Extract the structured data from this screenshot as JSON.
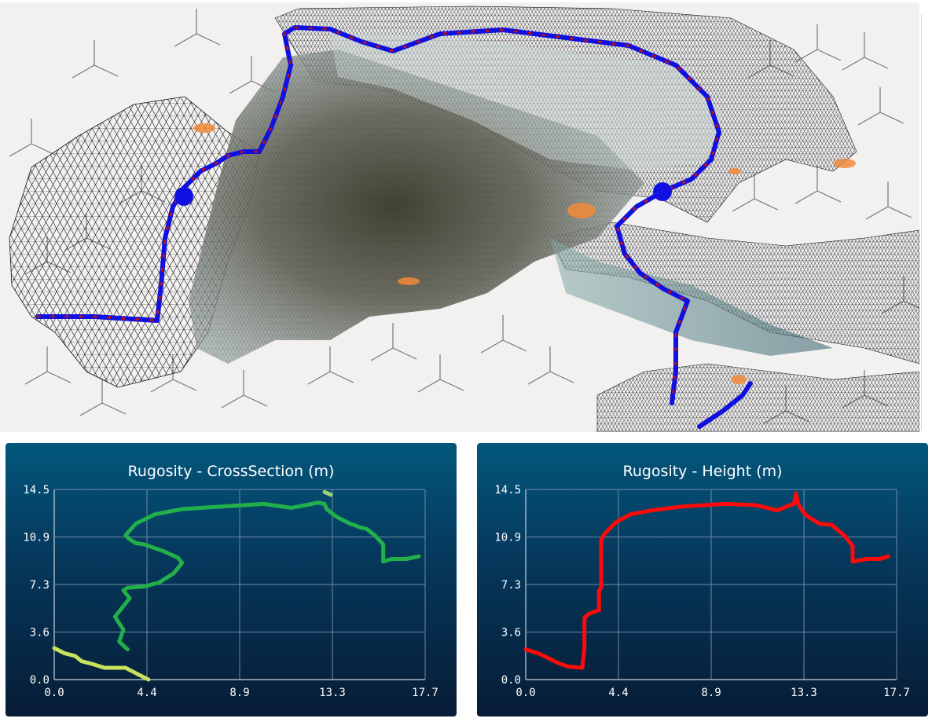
{
  "colors": {
    "viewport_bg": "#f3f0f0",
    "path_color": "#1010e0",
    "path_marker": "#c01010",
    "cross_series": "#22b04a",
    "cross_series_secondary": "#c8e35a",
    "height_series": "#ff0a0a"
  },
  "icons": [
    "coordinate-axes-icon"
  ],
  "chart_data": [
    {
      "type": "line",
      "title": "Rugosity - CrossSection (m)",
      "xlabel": "",
      "ylabel": "",
      "xlim": [
        0,
        17.7
      ],
      "ylim": [
        0,
        14.5
      ],
      "x_ticks": [
        "0.0",
        "4.4",
        "8.9",
        "13.3",
        "17.7"
      ],
      "y_ticks": [
        "0.0",
        "3.6",
        "7.3",
        "10.9",
        "14.5"
      ],
      "grid": true,
      "series": [
        {
          "color": "#22b04a",
          "x": [
            3.5,
            3.1,
            3.3,
            2.9,
            3.4,
            3.6,
            3.3,
            3.5,
            4.3,
            5.0,
            5.7,
            6.1,
            5.9,
            5.2,
            4.3,
            3.9,
            3.6,
            3.4,
            3.9,
            4.8,
            6.1,
            8.0,
            10.0,
            11.3,
            12.0,
            12.6,
            12.9,
            13.0,
            13.4,
            13.6,
            14.1,
            14.3,
            14.6,
            14.9,
            15.3,
            15.7,
            15.7,
            16.1,
            16.8,
            17.4
          ],
          "y": [
            2.3,
            2.9,
            3.8,
            4.8,
            5.8,
            6.2,
            6.8,
            7.0,
            7.1,
            7.4,
            8.1,
            8.9,
            9.3,
            9.8,
            10.3,
            10.4,
            10.7,
            11.0,
            11.9,
            12.6,
            13.0,
            13.2,
            13.4,
            13.1,
            13.3,
            13.5,
            13.4,
            13.0,
            12.5,
            12.3,
            11.9,
            11.8,
            11.6,
            11.5,
            11.0,
            10.3,
            9.0,
            9.2,
            9.2,
            9.4
          ]
        },
        {
          "color": "#c8e35a",
          "x": [
            0.0,
            0.5,
            1.0,
            1.3,
            1.8,
            2.4,
            3.0,
            3.4,
            4.0,
            4.5
          ],
          "y": [
            2.4,
            2.0,
            1.8,
            1.4,
            1.2,
            0.9,
            0.9,
            0.9,
            0.4,
            0.0
          ]
        },
        {
          "color": "#9bd37a",
          "x": [
            12.9,
            13.2
          ],
          "y": [
            14.3,
            14.1
          ]
        }
      ]
    },
    {
      "type": "line",
      "title": "Rugosity - Height (m)",
      "xlabel": "",
      "ylabel": "",
      "xlim": [
        0,
        17.7
      ],
      "ylim": [
        0,
        14.5
      ],
      "x_ticks": [
        "0.0",
        "4.4",
        "8.9",
        "13.3",
        "17.7"
      ],
      "y_ticks": [
        "0.0",
        "3.6",
        "7.3",
        "10.9",
        "14.5"
      ],
      "grid": true,
      "series": [
        {
          "color": "#ff0a0a",
          "x": [
            0.0,
            0.6,
            1.0,
            1.5,
            2.0,
            2.7,
            2.8,
            2.8,
            3.0,
            3.5,
            3.5,
            3.6,
            3.6,
            3.7,
            4.3,
            5.0,
            6.0,
            7.5,
            9.5,
            11.0,
            12.0,
            12.6,
            12.8,
            12.9,
            13.0,
            13.2,
            13.4,
            14.0,
            14.6,
            15.2,
            15.6,
            15.6,
            16.3,
            16.9,
            17.3
          ],
          "y": [
            2.3,
            2.0,
            1.7,
            1.3,
            1.0,
            0.9,
            2.5,
            4.7,
            5.0,
            5.3,
            6.8,
            7.0,
            10.6,
            11.0,
            12.0,
            12.6,
            12.9,
            13.2,
            13.4,
            13.3,
            12.9,
            13.3,
            13.4,
            14.2,
            13.4,
            12.9,
            12.5,
            11.9,
            11.8,
            11.0,
            10.2,
            9.0,
            9.2,
            9.2,
            9.4
          ]
        }
      ]
    }
  ]
}
